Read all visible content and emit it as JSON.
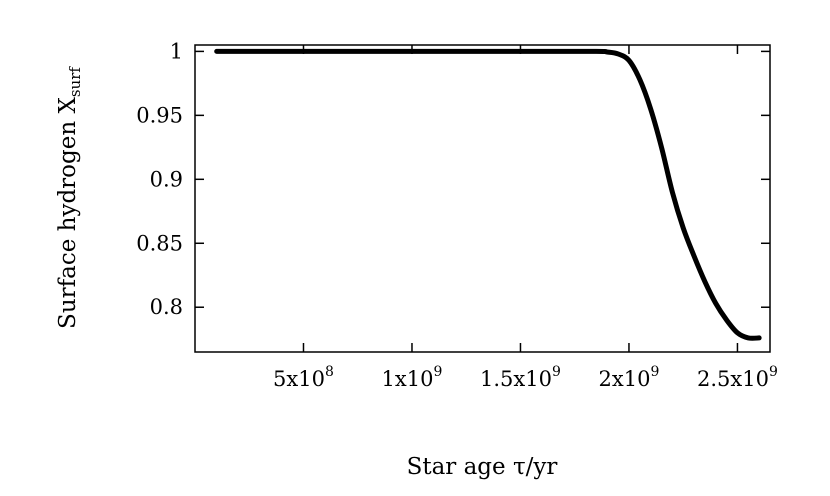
{
  "chart_data": {
    "type": "line",
    "title": "",
    "xlabel": "Star age τ/yr",
    "ylabel": "Surface hydrogen X",
    "ylabel_subscript": "surf",
    "xlim": [
      0,
      2650000000.0
    ],
    "ylim": [
      0.765,
      1.005
    ],
    "grid": false,
    "legend": "none",
    "line_color": "#000000",
    "x_ticks": [
      {
        "value": 500000000.0,
        "mantissa": "5x10",
        "exp": "8"
      },
      {
        "value": 1000000000.0,
        "mantissa": "1x10",
        "exp": "9"
      },
      {
        "value": 1500000000.0,
        "mantissa": "1.5x10",
        "exp": "9"
      },
      {
        "value": 2000000000.0,
        "mantissa": "2x10",
        "exp": "9"
      },
      {
        "value": 2500000000.0,
        "mantissa": "2.5x10",
        "exp": "9"
      }
    ],
    "y_ticks": [
      {
        "value": 0.8,
        "label": "0.8"
      },
      {
        "value": 0.85,
        "label": "0.85"
      },
      {
        "value": 0.9,
        "label": "0.9"
      },
      {
        "value": 0.95,
        "label": "0.95"
      },
      {
        "value": 1.0,
        "label": "1"
      }
    ],
    "series": [
      {
        "x": [
          100000000.0,
          500000000.0,
          1000000000.0,
          1500000000.0,
          1850000000.0,
          1900000000.0,
          1950000000.0,
          2000000000.0,
          2050000000.0,
          2100000000.0,
          2150000000.0,
          2200000000.0,
          2250000000.0,
          2300000000.0,
          2350000000.0,
          2400000000.0,
          2450000000.0,
          2500000000.0,
          2550000000.0,
          2600000000.0
        ],
        "y": [
          1.0,
          1.0,
          1.0,
          1.0,
          1.0,
          0.9995,
          0.998,
          0.993,
          0.978,
          0.955,
          0.925,
          0.89,
          0.862,
          0.84,
          0.82,
          0.803,
          0.79,
          0.78,
          0.776,
          0.776
        ]
      }
    ]
  }
}
